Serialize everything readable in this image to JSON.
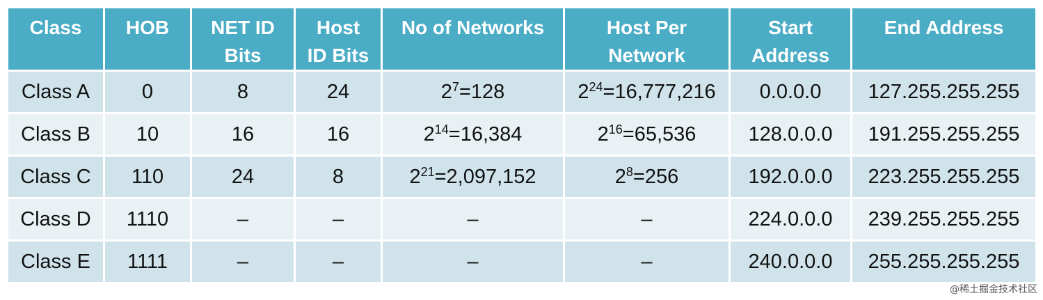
{
  "headers": [
    [
      "Class"
    ],
    [
      "HOB"
    ],
    [
      "NET ID",
      "Bits"
    ],
    [
      "Host",
      "ID Bits"
    ],
    [
      "No of Networks"
    ],
    [
      "Host Per",
      "Network"
    ],
    [
      "Start",
      "Address"
    ],
    [
      "End Address"
    ]
  ],
  "rows": [
    {
      "class": "Class A",
      "hob": "0",
      "net_id_bits": "8",
      "host_id_bits": "24",
      "networks": {
        "base": "2",
        "exp": "7",
        "rest": "=128"
      },
      "hosts": {
        "base": "2",
        "exp": "24",
        "rest": "=16,777,216"
      },
      "start": "0.0.0.0",
      "end": "127.255.255.255"
    },
    {
      "class": "Class B",
      "hob": "10",
      "net_id_bits": "16",
      "host_id_bits": "16",
      "networks": {
        "base": "2",
        "exp": "14",
        "rest": "=16,384"
      },
      "hosts": {
        "base": "2",
        "exp": "16",
        "rest": "=65,536"
      },
      "start": "128.0.0.0",
      "end": "191.255.255.255"
    },
    {
      "class": "Class C",
      "hob": "110",
      "net_id_bits": "24",
      "host_id_bits": "8",
      "networks": {
        "base": "2",
        "exp": "21",
        "rest": "=2,097,152"
      },
      "hosts": {
        "base": "2",
        "exp": "8",
        "rest": "=256"
      },
      "start": "192.0.0.0",
      "end": "223.255.255.255"
    },
    {
      "class": "Class D",
      "hob": "1110",
      "net_id_bits": "–",
      "host_id_bits": "–",
      "networks": {
        "base": "–",
        "exp": "",
        "rest": ""
      },
      "hosts": {
        "base": "–",
        "exp": "",
        "rest": ""
      },
      "start": "224.0.0.0",
      "end": "239.255.255.255"
    },
    {
      "class": "Class E",
      "hob": "1111",
      "net_id_bits": "–",
      "host_id_bits": "–",
      "networks": {
        "base": "–",
        "exp": "",
        "rest": ""
      },
      "hosts": {
        "base": "–",
        "exp": "",
        "rest": ""
      },
      "start": "240.0.0.0",
      "end": "255.255.255.255"
    }
  ],
  "watermark": "@稀土掘金技术社区",
  "colors": {
    "header_bg": "#4bacc6",
    "row_dark": "#d0e3ea",
    "row_light": "#e9f1f5",
    "header_text": "#ffffff",
    "cell_text": "#111111"
  }
}
